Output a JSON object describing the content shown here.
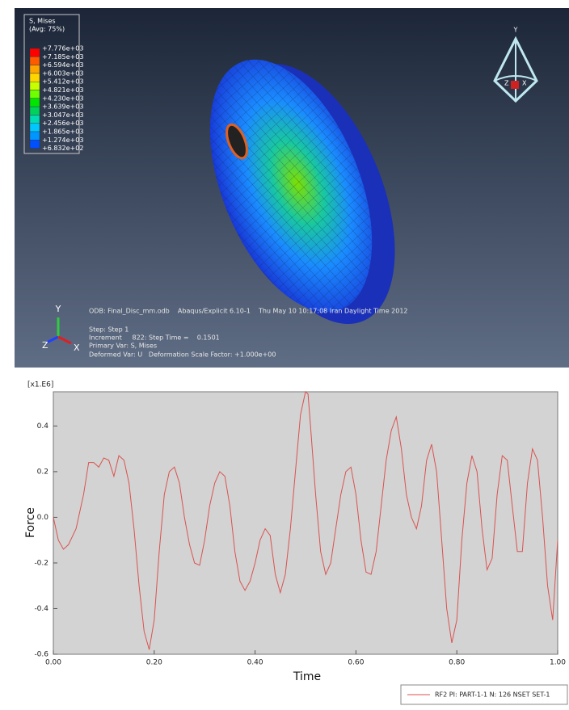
{
  "viewport": {
    "legend": {
      "title": "S, Mises",
      "subtitle": "(Avg: 75%)",
      "levels": [
        "+7.776e+03",
        "+7.185e+03",
        "+6.594e+03",
        "+6.003e+03",
        "+5.412e+03",
        "+4.821e+03",
        "+4.230e+03",
        "+3.639e+03",
        "+3.047e+03",
        "+2.456e+03",
        "+1.865e+03",
        "+1.274e+03",
        "+6.832e+02"
      ],
      "colors": [
        "#ff0000",
        "#ff5a00",
        "#ffa500",
        "#ffd700",
        "#c8ff00",
        "#6eff00",
        "#00e600",
        "#00d25a",
        "#00dcb4",
        "#00c8ff",
        "#0096ff",
        "#0050ff"
      ]
    },
    "triad_top": {
      "y": "Y",
      "z": "Z",
      "x": "X"
    },
    "triad_bottom": {
      "y": "Y",
      "z": "Z",
      "x": "X"
    },
    "info": {
      "odb": "ODB: Final_Disc_mm.odb    Abaqus/Explicit 6.10-1    Thu May 10 10:17:08 Iran Daylight Time 2012",
      "step": "Step: Step 1",
      "increment": "Increment     822: Step Time =    0.1501",
      "primary": "Primary Var: S, Mises",
      "deformed": "Deformed Var: U   Deformation Scale Factor: +1.000e+00"
    }
  },
  "chart_data": {
    "type": "line",
    "multiplier": "[x1.E6]",
    "xlabel": "Time",
    "ylabel": "Force",
    "x": [
      0.0,
      0.01,
      0.02,
      0.03,
      0.045,
      0.06,
      0.07,
      0.08,
      0.09,
      0.1,
      0.11,
      0.12,
      0.13,
      0.14,
      0.15,
      0.16,
      0.17,
      0.18,
      0.19,
      0.2,
      0.21,
      0.22,
      0.23,
      0.24,
      0.25,
      0.26,
      0.27,
      0.28,
      0.29,
      0.3,
      0.31,
      0.32,
      0.33,
      0.34,
      0.35,
      0.36,
      0.37,
      0.38,
      0.39,
      0.4,
      0.41,
      0.42,
      0.43,
      0.44,
      0.45,
      0.46,
      0.47,
      0.48,
      0.49,
      0.5,
      0.505,
      0.51,
      0.52,
      0.53,
      0.54,
      0.55,
      0.56,
      0.57,
      0.58,
      0.59,
      0.6,
      0.61,
      0.62,
      0.63,
      0.64,
      0.65,
      0.66,
      0.67,
      0.68,
      0.69,
      0.7,
      0.71,
      0.72,
      0.73,
      0.74,
      0.75,
      0.76,
      0.77,
      0.78,
      0.79,
      0.8,
      0.81,
      0.82,
      0.83,
      0.84,
      0.85,
      0.86,
      0.87,
      0.88,
      0.89,
      0.9,
      0.91,
      0.92,
      0.93,
      0.94,
      0.95,
      0.96,
      0.97,
      0.98,
      0.99,
      1.0
    ],
    "series": [
      {
        "name": "RF2 PI: PART-1-1 N: 126 NSET SET-1",
        "color": "#d9534f",
        "values": [
          0.0,
          -0.1,
          -0.14,
          -0.12,
          -0.05,
          0.1,
          0.24,
          0.24,
          0.22,
          0.26,
          0.25,
          0.18,
          0.27,
          0.25,
          0.15,
          -0.05,
          -0.3,
          -0.5,
          -0.58,
          -0.45,
          -0.15,
          0.1,
          0.2,
          0.22,
          0.15,
          0.0,
          -0.12,
          -0.2,
          -0.21,
          -0.1,
          0.05,
          0.15,
          0.2,
          0.18,
          0.05,
          -0.15,
          -0.28,
          -0.32,
          -0.28,
          -0.2,
          -0.1,
          -0.05,
          -0.08,
          -0.25,
          -0.33,
          -0.25,
          -0.05,
          0.2,
          0.45,
          0.55,
          0.54,
          0.4,
          0.1,
          -0.15,
          -0.25,
          -0.2,
          -0.05,
          0.1,
          0.2,
          0.22,
          0.1,
          -0.1,
          -0.24,
          -0.25,
          -0.15,
          0.05,
          0.25,
          0.38,
          0.44,
          0.3,
          0.1,
          0.0,
          -0.05,
          0.05,
          0.25,
          0.32,
          0.2,
          -0.1,
          -0.4,
          -0.55,
          -0.45,
          -0.1,
          0.15,
          0.27,
          0.2,
          -0.05,
          -0.23,
          -0.18,
          0.1,
          0.27,
          0.25,
          0.05,
          -0.15,
          -0.15,
          0.15,
          0.3,
          0.25,
          0.0,
          -0.3,
          -0.45,
          -0.1
        ]
      }
    ],
    "xlim": [
      0,
      1.0
    ],
    "ylim": [
      -0.6,
      0.55
    ],
    "xticks": [
      {
        "value": 0,
        "label": "0.00"
      },
      {
        "value": 0.2,
        "label": "0.20"
      },
      {
        "value": 0.4,
        "label": "0.40"
      },
      {
        "value": 0.6,
        "label": "0.60"
      },
      {
        "value": 0.8,
        "label": "0.80"
      },
      {
        "value": 1.0,
        "label": "1.00"
      }
    ],
    "yticks": [
      -0.6,
      -0.4,
      -0.2,
      {
        "value": 0,
        "label": "0.0"
      },
      0.2,
      0.4
    ],
    "legend": "bottom-right"
  }
}
